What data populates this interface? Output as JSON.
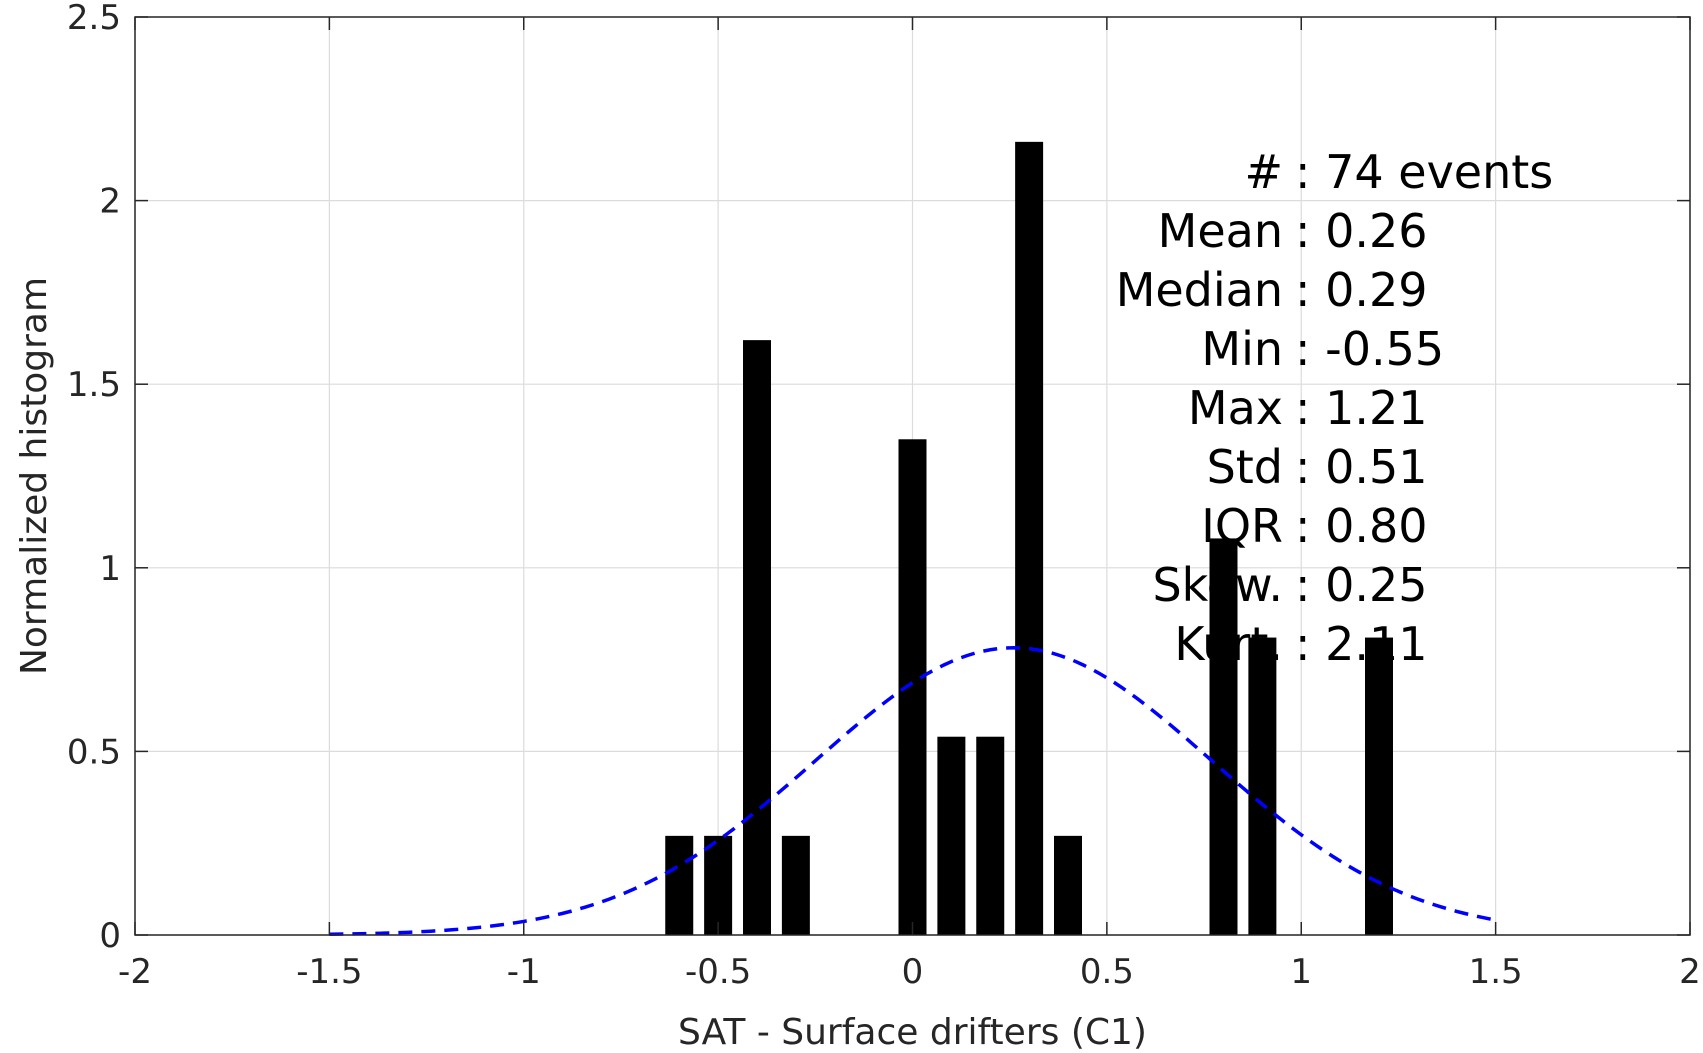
{
  "chart_data": {
    "type": "bar",
    "xlabel": "SAT - Surface drifters (C1)",
    "ylabel": "Normalized histogram",
    "xlim": [
      -2,
      2
    ],
    "ylim": [
      0,
      2.5
    ],
    "xticks": [
      -2,
      -1.5,
      -1,
      -0.5,
      0,
      0.5,
      1,
      1.5,
      2
    ],
    "xtick_labels": [
      "-2",
      "-1.5",
      "-1",
      "-0.5",
      "0",
      "0.5",
      "1",
      "1.5",
      "2"
    ],
    "yticks": [
      0,
      0.5,
      1,
      1.5,
      2,
      2.5
    ],
    "ytick_labels": [
      "0",
      "0.5",
      "1",
      "1.5",
      "2",
      "2.5"
    ],
    "grid": true,
    "bin_width": 0.1,
    "bars": [
      {
        "x": -0.6,
        "y": 0.27
      },
      {
        "x": -0.5,
        "y": 0.27
      },
      {
        "x": -0.4,
        "y": 1.62
      },
      {
        "x": -0.3,
        "y": 0.27
      },
      {
        "x": 0.0,
        "y": 1.35
      },
      {
        "x": 0.1,
        "y": 0.54
      },
      {
        "x": 0.2,
        "y": 0.54
      },
      {
        "x": 0.3,
        "y": 2.16
      },
      {
        "x": 0.4,
        "y": 0.27
      },
      {
        "x": 0.8,
        "y": 1.08
      },
      {
        "x": 0.9,
        "y": 0.81
      },
      {
        "x": 1.2,
        "y": 0.81
      }
    ],
    "bar_color": "#000000",
    "fit_curve": {
      "style": "dashed",
      "color": "#0000ff",
      "mean": 0.26,
      "std": 0.51,
      "x_range": [
        -1.5,
        1.5
      ]
    },
    "stats": [
      {
        "label": "#",
        "value": ": 74 events"
      },
      {
        "label": "Mean",
        "value": ": 0.26"
      },
      {
        "label": "Median",
        "value": ": 0.29"
      },
      {
        "label": "Min",
        "value": ": -0.55"
      },
      {
        "label": "Max",
        "value": ": 1.21"
      },
      {
        "label": "Std",
        "value": ": 0.51"
      },
      {
        "label": "IQR",
        "value": ": 0.80"
      },
      {
        "label": "Skew.",
        "value": ": 0.25"
      },
      {
        "label": "Kurt.",
        "value": ": 2.11"
      }
    ]
  }
}
